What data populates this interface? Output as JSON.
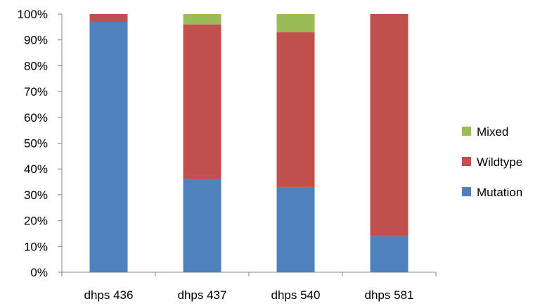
{
  "chart_data": {
    "type": "bar",
    "stacked": true,
    "normalized": true,
    "title": "",
    "xlabel": "",
    "ylabel": "",
    "ylim": [
      0,
      100
    ],
    "yticks": [
      "0%",
      "10%",
      "20%",
      "30%",
      "40%",
      "50%",
      "60%",
      "70%",
      "80%",
      "90%",
      "100%"
    ],
    "grid": false,
    "legend_position": "right",
    "categories": [
      "dhps 436",
      "dhps 437",
      "dhps 540",
      "dhps 581"
    ],
    "series": [
      {
        "name": "Mutation",
        "color": "#4f81bd",
        "values": [
          97,
          36,
          33,
          14
        ]
      },
      {
        "name": "Wildtype",
        "color": "#c0504d",
        "values": [
          3,
          60,
          60,
          86
        ]
      },
      {
        "name": "Mixed",
        "color": "#9bbb59",
        "values": [
          0,
          4,
          7,
          0
        ]
      }
    ],
    "legend_order": [
      "Mixed",
      "Wildtype",
      "Mutation"
    ]
  }
}
